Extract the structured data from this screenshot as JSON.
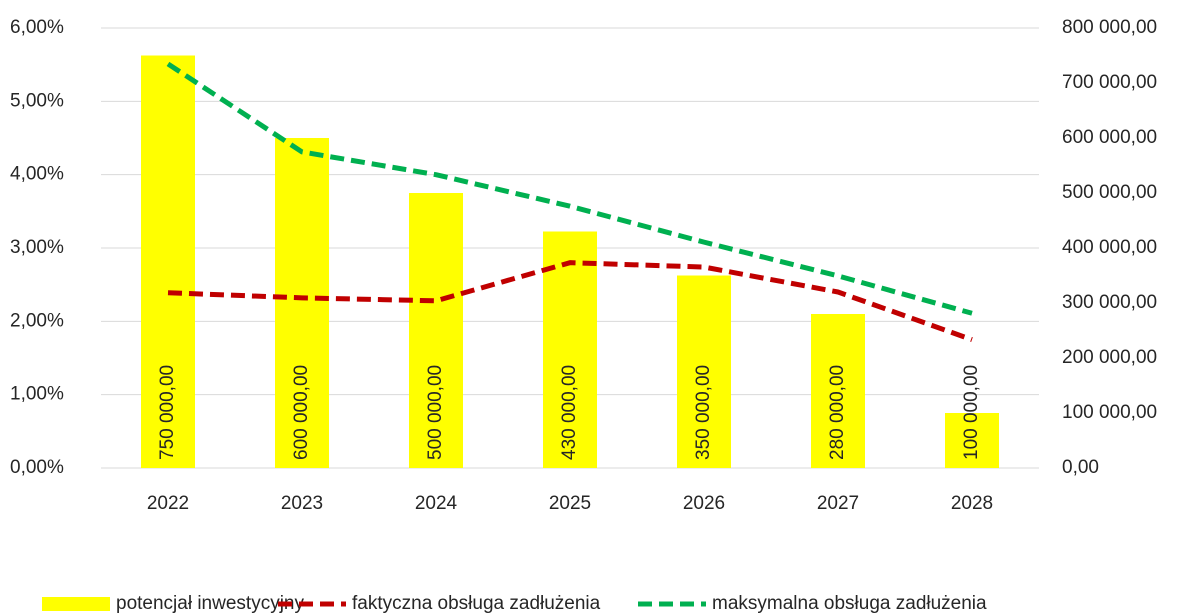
{
  "chart_data": {
    "type": "bar-line",
    "categories": [
      "2022",
      "2023",
      "2024",
      "2025",
      "2026",
      "2027",
      "2028"
    ],
    "series": [
      {
        "name": "potencjał inwestycyjny",
        "color": "#ffff00",
        "type": "bar",
        "axis": "y2",
        "values": [
          750000,
          600000,
          500000,
          430000,
          350000,
          280000,
          100000
        ],
        "value_labels": [
          "750 000,00",
          "600 000,00",
          "500 000,00",
          "430 000,00",
          "350 000,00",
          "280 000,00",
          "100 000,00"
        ]
      },
      {
        "name": "faktyczna obsługa zadłużenia",
        "color": "#c00000",
        "type": "line",
        "dashed": true,
        "values": [
          2.39,
          2.32,
          2.28,
          2.8,
          2.74,
          2.4,
          1.75
        ]
      },
      {
        "name": "maksymalna obsługa zadłużenia",
        "color": "#00b050",
        "type": "line",
        "dashed": true,
        "values": [
          5.51,
          4.31,
          4.0,
          3.57,
          3.08,
          2.62,
          2.11
        ]
      }
    ],
    "ylim": [
      0,
      6
    ],
    "yticks": [
      {
        "value": 0,
        "label": "0,00%"
      },
      {
        "value": 1,
        "label": "1,00%"
      },
      {
        "value": 2,
        "label": "2,00%"
      },
      {
        "value": 3,
        "label": "3,00%"
      },
      {
        "value": 4,
        "label": "4,00%"
      },
      {
        "value": 5,
        "label": "5,00%"
      },
      {
        "value": 6,
        "label": "6,00%"
      }
    ],
    "y2lim": [
      0,
      800000
    ],
    "y2ticks": [
      {
        "value": 0,
        "label": "0,00"
      },
      {
        "value": 100000,
        "label": "100 000,00"
      },
      {
        "value": 200000,
        "label": "200 000,00"
      },
      {
        "value": 300000,
        "label": "300 000,00"
      },
      {
        "value": 400000,
        "label": "400 000,00"
      },
      {
        "value": 500000,
        "label": "500 000,00"
      },
      {
        "value": 600000,
        "label": "600 000,00"
      },
      {
        "value": 700000,
        "label": "700 000,00"
      },
      {
        "value": 800000,
        "label": "800 000,00"
      }
    ],
    "grid": true,
    "legend": "bottom"
  }
}
